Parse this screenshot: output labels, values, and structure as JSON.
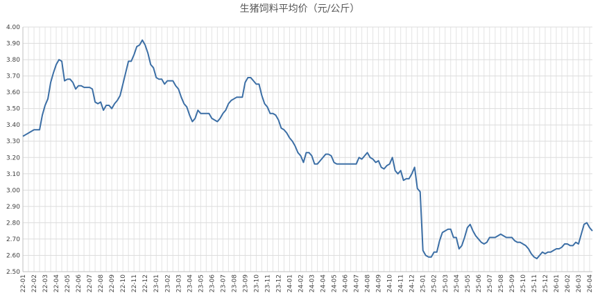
{
  "chart_data": {
    "type": "line",
    "title": "生猪饲料平均价（元/公斤）",
    "color": "#3b6ea5",
    "grid": true,
    "ylim": [
      2.5,
      4.0
    ],
    "yticks": [
      {
        "value": 2.5,
        "label": "2.50"
      },
      {
        "value": 2.6,
        "label": "2.60"
      },
      {
        "value": 2.7,
        "label": "2.70"
      },
      {
        "value": 2.8,
        "label": "2.80"
      },
      {
        "value": 2.9,
        "label": "2.90"
      },
      {
        "value": 3.0,
        "label": "3.00"
      },
      {
        "value": 3.1,
        "label": "3.10"
      },
      {
        "value": 3.2,
        "label": "3.20"
      },
      {
        "value": 3.3,
        "label": "3.30"
      },
      {
        "value": 3.4,
        "label": "3.40"
      },
      {
        "value": 3.5,
        "label": "3.50"
      },
      {
        "value": 3.6,
        "label": "3.60"
      },
      {
        "value": 3.7,
        "label": "3.70"
      },
      {
        "value": 3.8,
        "label": "3.80"
      },
      {
        "value": 3.9,
        "label": "3.90"
      },
      {
        "value": 4.0,
        "label": "4.00"
      }
    ],
    "categories": [
      "22-01",
      null,
      null,
      null,
      "22-02",
      null,
      null,
      null,
      "22-03",
      null,
      null,
      null,
      "22-04",
      null,
      null,
      null,
      "22-05",
      null,
      null,
      null,
      "22-06",
      null,
      null,
      null,
      "22-07",
      null,
      null,
      null,
      "22-08",
      null,
      null,
      null,
      "22-09",
      null,
      null,
      null,
      "22-10",
      null,
      null,
      null,
      "22-11",
      null,
      null,
      null,
      "22-12",
      null,
      null,
      null,
      "23-01",
      null,
      null,
      null,
      "23-02",
      null,
      null,
      null,
      "23-03",
      null,
      null,
      null,
      "23-04",
      null,
      null,
      null,
      "23-05",
      null,
      null,
      null,
      "23-06",
      null,
      null,
      null,
      "23-07",
      null,
      null,
      null,
      "23-08",
      null,
      null,
      null,
      "23-09",
      null,
      null,
      null,
      "23-10",
      null,
      null,
      null,
      "23-11",
      null,
      null,
      null,
      "23-12",
      null,
      null,
      null,
      "24-01",
      null,
      null,
      null,
      "24-02",
      null,
      null,
      null,
      "24-03",
      null,
      null,
      null,
      "24-04",
      null,
      null,
      null,
      "24-05",
      null,
      null,
      null,
      "24-06",
      null,
      null,
      null,
      "24-07",
      null,
      null,
      null,
      "24-08",
      null,
      null,
      null,
      "24-09",
      null,
      null,
      null,
      "24-10",
      null,
      null,
      null,
      "24-11",
      null,
      null,
      null,
      "24-12",
      null,
      null,
      null,
      "25-01",
      null,
      null,
      null,
      "25-02",
      null,
      null,
      null,
      "25-03",
      null,
      null,
      null,
      "25-04",
      null,
      null,
      null,
      "25-05",
      null,
      null,
      null,
      "25-06",
      null,
      null,
      null,
      "25-07",
      null,
      null,
      null,
      "25-08",
      null,
      null,
      null,
      "25-09",
      null,
      null,
      null,
      "25-10",
      null,
      null,
      null,
      "25-11",
      null,
      null,
      null,
      "25-12",
      null,
      null,
      null,
      "26-01",
      null,
      null,
      null,
      "26-02",
      null,
      null,
      null,
      "26-03",
      null,
      null,
      null,
      "26-04",
      null
    ],
    "values": [
      3.33,
      3.34,
      3.35,
      3.36,
      3.37,
      3.37,
      3.37,
      3.46,
      3.52,
      3.56,
      3.66,
      3.72,
      3.77,
      3.8,
      3.79,
      3.67,
      3.68,
      3.68,
      3.66,
      3.62,
      3.64,
      3.64,
      3.63,
      3.63,
      3.63,
      3.62,
      3.54,
      3.53,
      3.54,
      3.49,
      3.52,
      3.52,
      3.5,
      3.53,
      3.55,
      3.58,
      3.65,
      3.72,
      3.79,
      3.79,
      3.83,
      3.88,
      3.89,
      3.92,
      3.89,
      3.84,
      3.77,
      3.75,
      3.69,
      3.68,
      3.68,
      3.65,
      3.67,
      3.67,
      3.67,
      3.64,
      3.62,
      3.57,
      3.53,
      3.51,
      3.46,
      3.42,
      3.44,
      3.49,
      3.47,
      3.47,
      3.47,
      3.47,
      3.44,
      3.43,
      3.42,
      3.44,
      3.47,
      3.49,
      3.53,
      3.55,
      3.56,
      3.57,
      3.57,
      3.57,
      3.66,
      3.69,
      3.69,
      3.67,
      3.65,
      3.65,
      3.58,
      3.53,
      3.51,
      3.47,
      3.47,
      3.46,
      3.43,
      3.38,
      3.37,
      3.35,
      3.32,
      3.3,
      3.27,
      3.23,
      3.21,
      3.17,
      3.23,
      3.23,
      3.21,
      3.16,
      3.16,
      3.18,
      3.2,
      3.22,
      3.22,
      3.21,
      3.17,
      3.16,
      3.16,
      3.16,
      3.16,
      3.16,
      3.16,
      3.16,
      3.16,
      3.2,
      3.19,
      3.21,
      3.23,
      3.2,
      3.19,
      3.17,
      3.18,
      3.14,
      3.13,
      3.15,
      3.16,
      3.2,
      3.12,
      3.1,
      3.12,
      3.06,
      3.07,
      3.07,
      3.1,
      3.14,
      3.01,
      2.99,
      2.63,
      2.6,
      2.59,
      2.59,
      2.62,
      2.62,
      2.69,
      2.74,
      2.75,
      2.76,
      2.76,
      2.71,
      2.71,
      2.64,
      2.66,
      2.71,
      2.77,
      2.79,
      2.75,
      2.72,
      2.7,
      2.68,
      2.67,
      2.68,
      2.71,
      2.71,
      2.71,
      2.72,
      2.73,
      2.72,
      2.71,
      2.71,
      2.71,
      2.69,
      2.68,
      2.68,
      2.67,
      2.66,
      2.64,
      2.61,
      2.59,
      2.58,
      2.6,
      2.62,
      2.61,
      2.62,
      2.62,
      2.63,
      2.64,
      2.64,
      2.65,
      2.67,
      2.67,
      2.66,
      2.66,
      2.68,
      2.67,
      2.73,
      2.79,
      2.8,
      2.77,
      2.75
    ]
  }
}
